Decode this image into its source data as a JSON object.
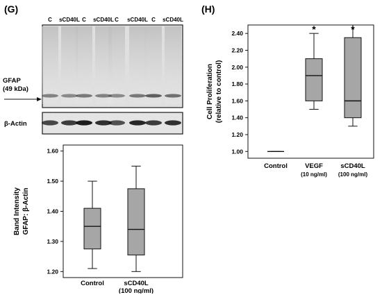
{
  "panel_g": {
    "label": "(G)",
    "lane_labels": [
      "C",
      "sCD40L",
      "C",
      "sCD40L",
      "C",
      "sCD40L",
      "C",
      "sCD40L"
    ],
    "gfap_label_line1": "GFAP",
    "gfap_label_line2": "(49 kDa)",
    "actin_label": "β-Actin"
  },
  "panel_h": {
    "label": "(H)"
  },
  "chart_data": [
    {
      "type": "box",
      "ylabel_line1": "Band Intensity",
      "ylabel_line2": "GFAP: β-Actin",
      "ylim": [
        1.18,
        1.62
      ],
      "yticks": [
        1.2,
        1.3,
        1.4,
        1.5,
        1.6
      ],
      "ytick_labels": [
        "1.20",
        "1.30",
        "1.40",
        "1.50",
        "1.60"
      ],
      "categories": [
        {
          "line1": "Control",
          "line2": ""
        },
        {
          "line1": "sCD40L",
          "line2": "(100 ng/ml)"
        }
      ],
      "boxes": [
        {
          "min": 1.21,
          "q1": 1.275,
          "median": 1.35,
          "q3": 1.41,
          "max": 1.5
        },
        {
          "min": 1.2,
          "q1": 1.255,
          "median": 1.34,
          "q3": 1.475,
          "max": 1.55
        }
      ],
      "box_color": "#a6a6a6",
      "grid": false
    },
    {
      "type": "box",
      "ylabel_line1": "Cell Proliferation",
      "ylabel_line2": "(relative to control)",
      "ylim": [
        0.92,
        2.5
      ],
      "yticks": [
        1.0,
        1.2,
        1.4,
        1.6,
        1.8,
        2.0,
        2.2,
        2.4
      ],
      "ytick_labels": [
        "1.00",
        "1.20",
        "1.40",
        "1.60",
        "1.80",
        "2.00",
        "2.20",
        "2.40"
      ],
      "categories": [
        {
          "line1": "Control",
          "line2": ""
        },
        {
          "line1": "VEGF",
          "line2": "(10 ng/ml)"
        },
        {
          "line1": "sCD40L",
          "line2": "(100 ng/ml)"
        }
      ],
      "boxes": [
        {
          "min": 1.0,
          "q1": 1.0,
          "median": 1.0,
          "q3": 1.0,
          "max": 1.0
        },
        {
          "min": 1.5,
          "q1": 1.6,
          "median": 1.9,
          "q3": 2.1,
          "max": 2.4
        },
        {
          "min": 1.3,
          "q1": 1.4,
          "median": 1.6,
          "q3": 2.35,
          "max": 2.5
        }
      ],
      "significance": [
        "",
        "*",
        "*"
      ],
      "box_color": "#a6a6a6",
      "grid": false
    }
  ]
}
